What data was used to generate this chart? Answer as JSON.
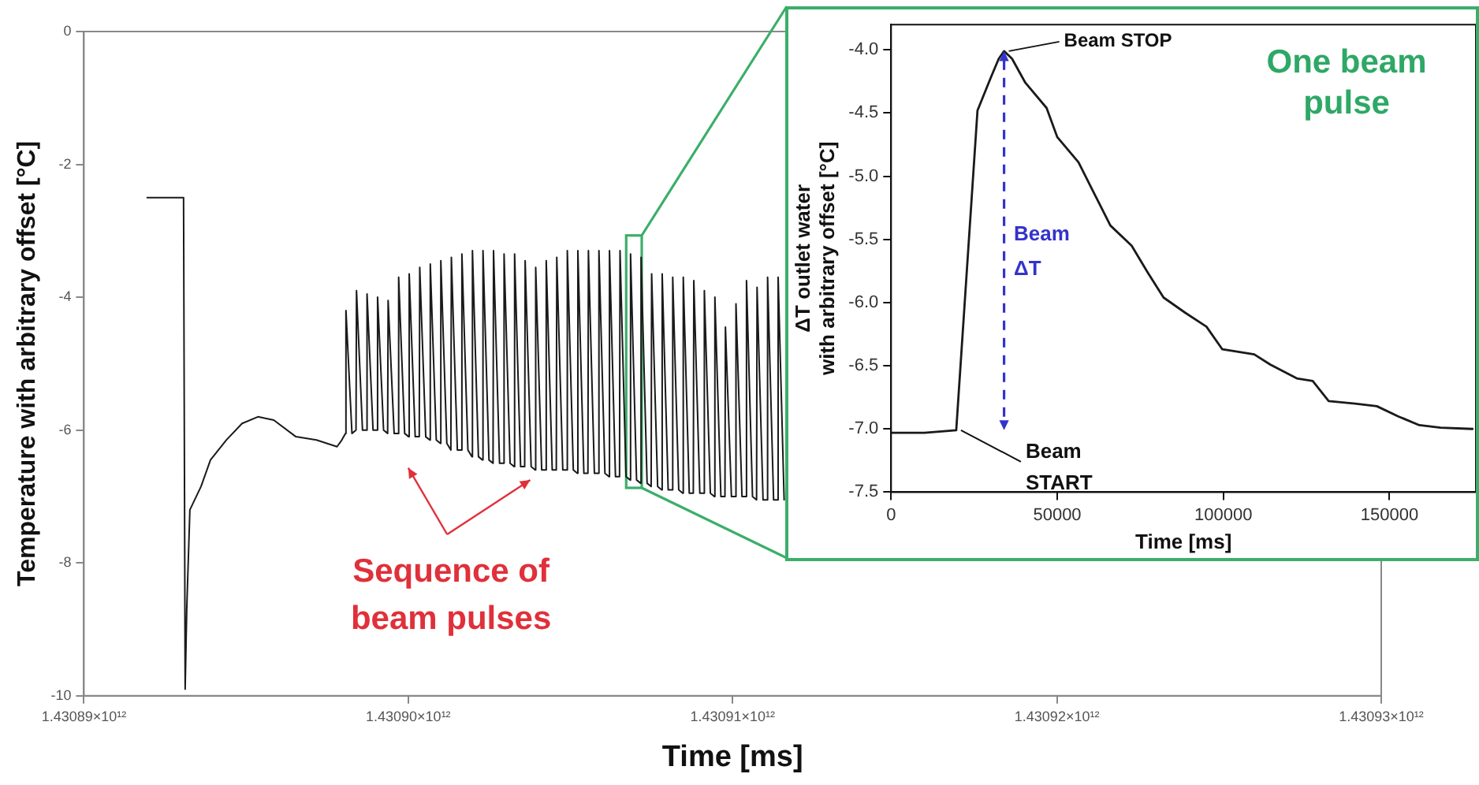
{
  "chart_data": [
    {
      "type": "line",
      "xlabel": "Time [ms]",
      "ylabel": "Temperature with arbitrary offset [°C]",
      "color": "#1a1a1a",
      "legend": false,
      "grid": false,
      "marker": "none",
      "line_style": "solid",
      "xlim": [
        1430890000000,
        1430930000000
      ],
      "ylim": [
        -10,
        0
      ],
      "xticks": [
        {
          "value": 1430890000000,
          "label": "1.43089×10¹²"
        },
        {
          "value": 1430900000000,
          "label": "1.43090×10¹²"
        },
        {
          "value": 1430910000000,
          "label": "1.43091×10¹²"
        },
        {
          "value": 1430920000000,
          "label": "1.43092×10¹²"
        },
        {
          "value": 1430930000000,
          "label": "1.43093×10¹²"
        }
      ],
      "yticks": [
        0,
        -2,
        -4,
        -6,
        -8,
        -10
      ],
      "annotations": [
        "Sequence of beam pulses"
      ],
      "x": [
        1430891951000,
        1430893073000,
        1430893122000,
        1430893171000,
        1430893268000,
        1430893610000,
        1430893902000,
        1430894390000,
        1430894878000,
        1430895366000,
        1430895854000,
        1430896537000,
        1430897171000,
        1430897805000,
        1430897951000,
        1430898065000,
        1430898080000,
        1430898265000,
        1430898390000,
        1430898405000,
        1430898590000,
        1430898715000,
        1430898730000,
        1430898915000,
        1430899040000,
        1430899055000,
        1430899240000,
        1430899365000,
        1430899380000,
        1430899565000,
        1430899690000,
        1430899705000,
        1430899890000,
        1430900015000,
        1430900030000,
        1430900215000,
        1430900340000,
        1430900355000,
        1430900540000,
        1430900665000,
        1430900680000,
        1430900865000,
        1430900990000,
        1430901005000,
        1430901190000,
        1430901315000,
        1430901330000,
        1430901515000,
        1430901640000,
        1430901655000,
        1430901840000,
        1430901965000,
        1430901980000,
        1430902165000,
        1430902290000,
        1430902305000,
        1430902490000,
        1430902615000,
        1430902630000,
        1430902815000,
        1430902940000,
        1430902955000,
        1430903140000,
        1430903265000,
        1430903280000,
        1430903465000,
        1430903590000,
        1430903605000,
        1430903790000,
        1430903915000,
        1430903930000,
        1430904115000,
        1430904240000,
        1430904255000,
        1430904440000,
        1430904565000,
        1430904580000,
        1430904765000,
        1430904890000,
        1430904905000,
        1430905090000,
        1430905215000,
        1430905230000,
        1430905415000,
        1430905540000,
        1430905555000,
        1430905740000,
        1430905865000,
        1430905880000,
        1430906065000,
        1430906190000,
        1430906205000,
        1430906390000,
        1430906515000,
        1430906530000,
        1430906715000,
        1430906840000,
        1430906855000,
        1430907040000,
        1430907165000,
        1430907180000,
        1430907365000,
        1430907490000,
        1430907505000,
        1430907690000,
        1430907815000,
        1430907830000,
        1430908015000,
        1430908140000,
        1430908155000,
        1430908340000,
        1430908465000,
        1430908480000,
        1430908665000,
        1430908790000,
        1430908805000,
        1430908990000,
        1430909115000,
        1430909130000,
        1430909315000,
        1430909440000,
        1430909455000,
        1430909640000,
        1430909765000,
        1430909780000,
        1430909965000,
        1430910090000,
        1430910105000,
        1430910290000,
        1430910415000,
        1430910430000,
        1430910615000,
        1430910740000,
        1430910755000,
        1430910940000,
        1430911065000,
        1430911080000,
        1430911265000,
        1430911390000,
        1430911405000,
        1430911590000
      ],
      "values": [
        -2.5,
        -2.5,
        -9.9,
        -8.7,
        -7.2,
        -6.85,
        -6.45,
        -6.15,
        -5.9,
        -5.8,
        -5.85,
        -6.1,
        -6.15,
        -6.25,
        -6.15,
        -6.05,
        -4.2,
        -6.05,
        -6.0,
        -3.9,
        -6.0,
        -6.0,
        -3.95,
        -6.0,
        -6.0,
        -4.0,
        -6.0,
        -6.05,
        -4.05,
        -6.05,
        -6.05,
        -3.7,
        -6.05,
        -6.1,
        -3.65,
        -6.1,
        -6.1,
        -3.55,
        -6.1,
        -6.15,
        -3.5,
        -6.15,
        -6.2,
        -3.45,
        -6.2,
        -6.3,
        -3.4,
        -6.3,
        -6.3,
        -3.35,
        -6.3,
        -6.4,
        -3.3,
        -6.4,
        -6.45,
        -3.3,
        -6.45,
        -6.5,
        -3.3,
        -6.5,
        -6.5,
        -3.35,
        -6.5,
        -6.55,
        -3.35,
        -6.55,
        -6.55,
        -3.45,
        -6.55,
        -6.6,
        -3.55,
        -6.6,
        -6.6,
        -3.45,
        -6.6,
        -6.6,
        -3.4,
        -6.6,
        -6.6,
        -3.3,
        -6.6,
        -6.65,
        -3.3,
        -6.65,
        -6.65,
        -3.3,
        -6.65,
        -6.65,
        -3.3,
        -6.65,
        -6.7,
        -3.3,
        -6.7,
        -6.7,
        -3.3,
        -6.7,
        -6.75,
        -3.35,
        -6.75,
        -6.8,
        -3.4,
        -6.8,
        -6.85,
        -3.65,
        -6.85,
        -6.9,
        -3.65,
        -6.9,
        -6.9,
        -3.7,
        -6.9,
        -6.95,
        -3.7,
        -6.95,
        -6.95,
        -3.75,
        -6.95,
        -6.95,
        -3.9,
        -6.95,
        -7.0,
        -4.0,
        -7.0,
        -7.0,
        -4.45,
        -7.0,
        -7.0,
        -4.1,
        -7.0,
        -7.0,
        -3.75,
        -7.0,
        -7.05,
        -3.85,
        -7.05,
        -7.05,
        -3.7,
        -7.05,
        -7.05,
        -3.7,
        -7.05
      ]
    },
    {
      "type": "line",
      "title": "One beam pulse",
      "xlabel": "Time [ms]",
      "ylabel": "ΔT outlet water with arbitrary offset [°C]",
      "color": "#1a1a1a",
      "legend": false,
      "grid": false,
      "marker": "none",
      "line_style": "solid",
      "xlim": [
        0,
        176000
      ],
      "ylim": [
        -7.5,
        -3.8
      ],
      "xticks": [
        0,
        50000,
        100000,
        150000
      ],
      "yticks": [
        {
          "value": -7.5,
          "label": "-7.5"
        },
        {
          "value": -7,
          "label": "-7.0"
        },
        {
          "value": -6.5,
          "label": "-6.5"
        },
        {
          "value": -6,
          "label": "-6.0"
        },
        {
          "value": -5.5,
          "label": "-5.5"
        },
        {
          "value": -5,
          "label": "-5.0"
        },
        {
          "value": -4.5,
          "label": "-4.5"
        },
        {
          "value": -4,
          "label": "-4.0"
        }
      ],
      "annotations": [
        {
          "text": "Beam STOP",
          "x": 34000,
          "y": -4.01
        },
        {
          "text": "Beam START",
          "x": 19600,
          "y": -7.01
        },
        "Beam ΔT"
      ],
      "x": [
        0,
        10000,
        19600,
        26000,
        30000,
        32400,
        34000,
        36400,
        40400,
        46800,
        50000,
        56400,
        61200,
        66000,
        72400,
        77200,
        82000,
        88500,
        94900,
        99700,
        109300,
        114100,
        122100,
        126900,
        131700,
        139700,
        146200,
        152600,
        159000,
        165400,
        175000
      ],
      "values": [
        -7.03,
        -7.03,
        -7.01,
        -4.48,
        -4.22,
        -4.07,
        -4.01,
        -4.07,
        -4.26,
        -4.46,
        -4.69,
        -4.89,
        -5.14,
        -5.39,
        -5.55,
        -5.76,
        -5.96,
        -6.08,
        -6.19,
        -6.37,
        -6.41,
        -6.49,
        -6.6,
        -6.62,
        -6.78,
        -6.8,
        -6.82,
        -6.9,
        -6.97,
        -6.99,
        -7.0
      ]
    }
  ]
}
